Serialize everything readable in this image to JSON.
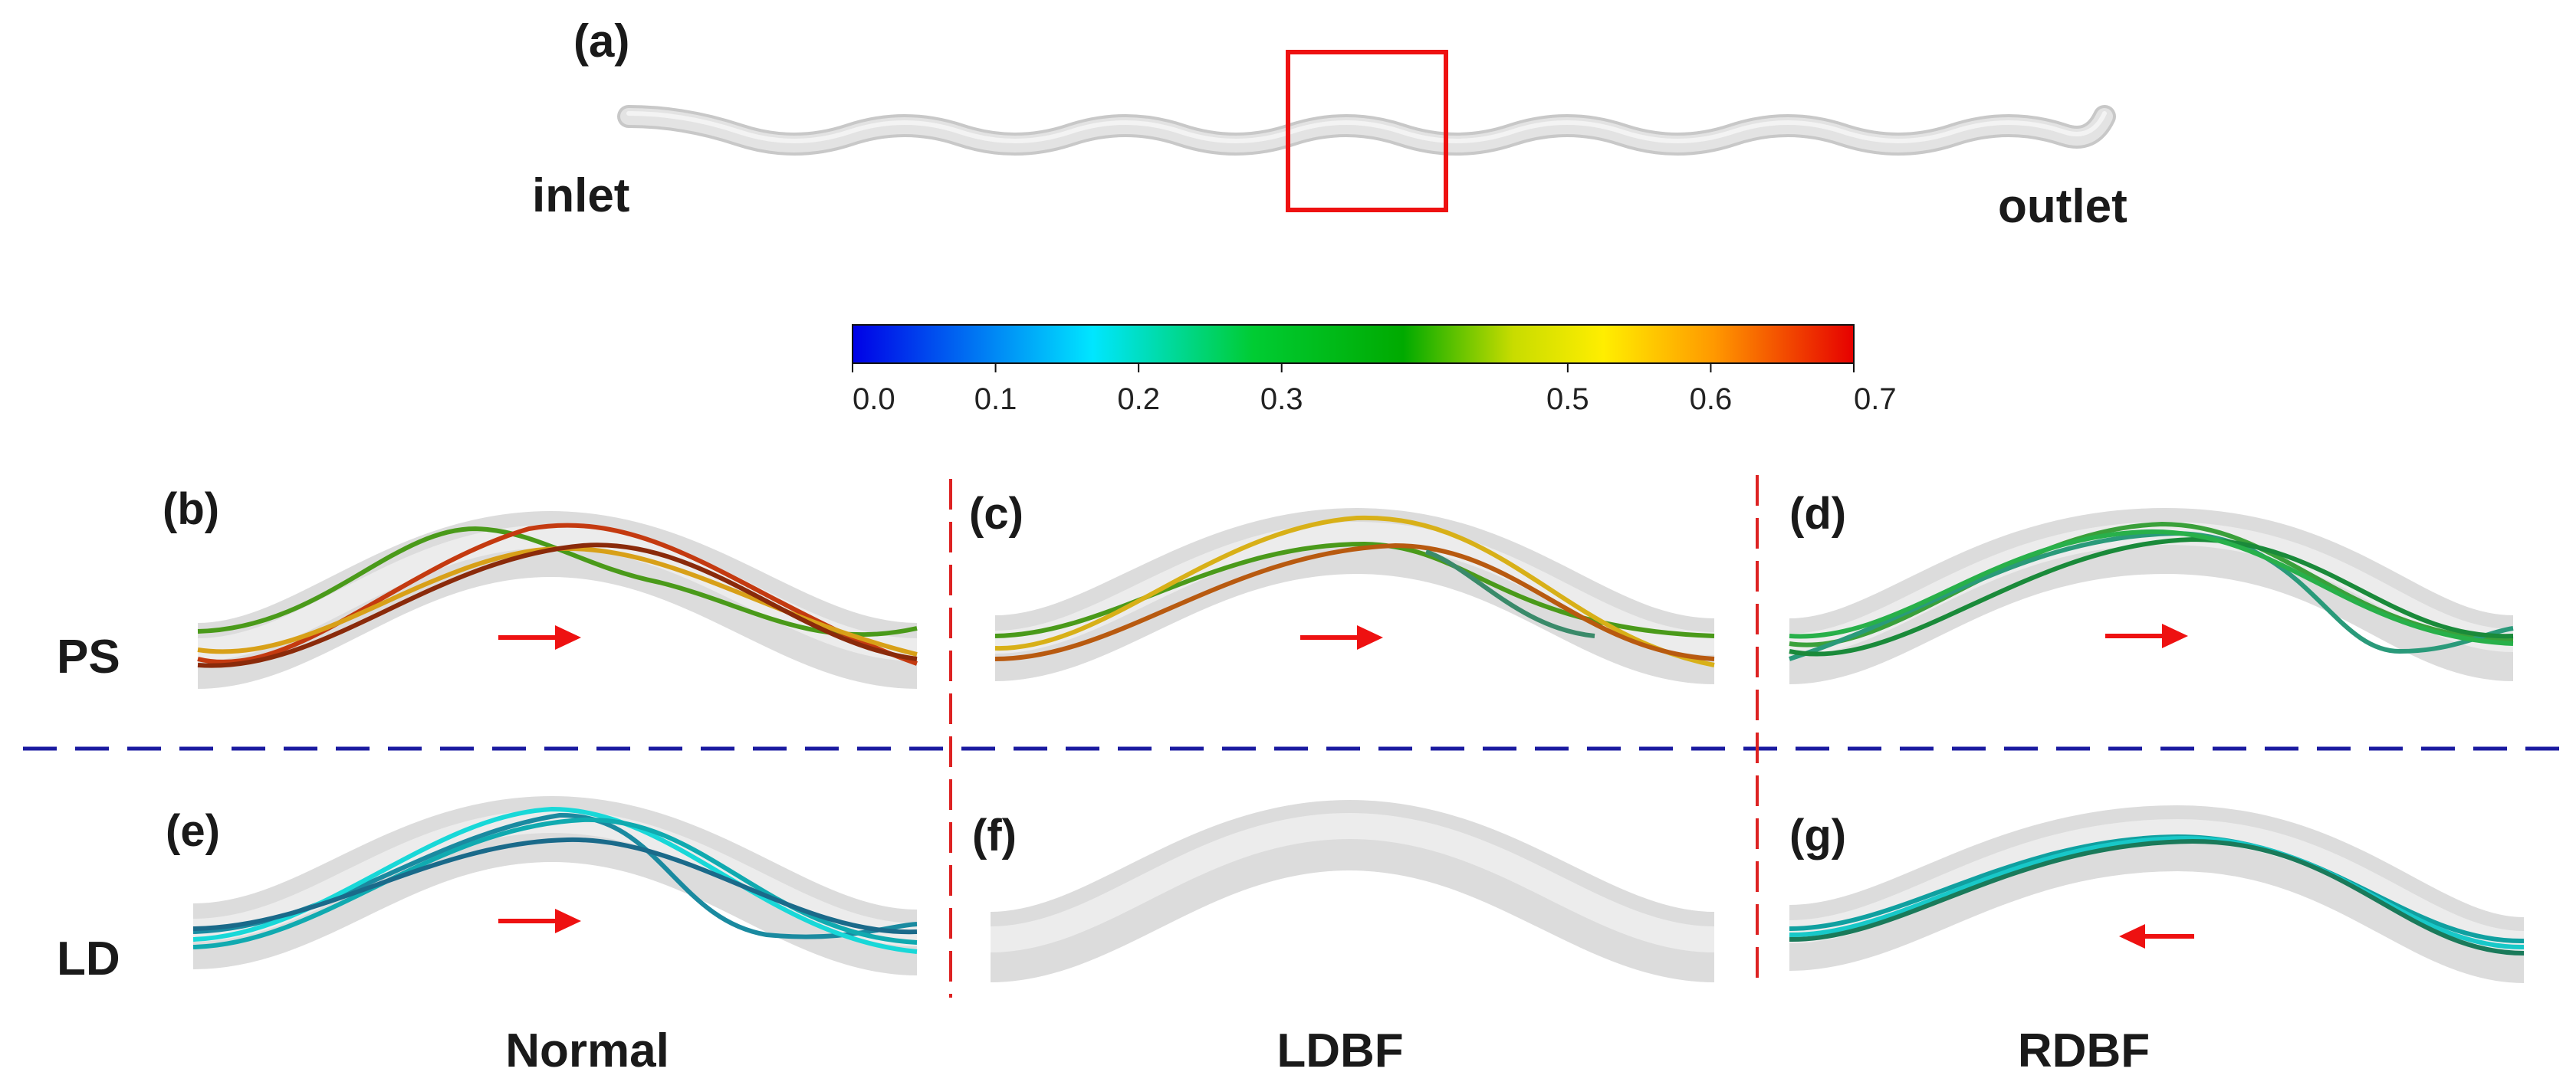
{
  "panels": {
    "a": "(a)",
    "b": "(b)",
    "c": "(c)",
    "d": "(d)",
    "e": "(e)",
    "f": "(f)",
    "g": "(g)"
  },
  "inlet_label": "inlet",
  "outlet_label": "outlet",
  "colorbar": {
    "min": 0.0,
    "max": 0.7,
    "ticks": [
      "0.0",
      "0.1",
      "0.2",
      "0.3",
      "0.5",
      "0.6",
      "0.7"
    ],
    "stops": [
      "#0000e6",
      "#00e6ff",
      "#00cc33",
      "#00aa00",
      "#c8dc00",
      "#ffee00",
      "#ff9900",
      "#e60000"
    ]
  },
  "row_labels": {
    "top": "PS",
    "bottom": "LD"
  },
  "column_labels": {
    "left": "Normal",
    "middle": "LDBF",
    "right": "RDBF"
  },
  "flow_direction": {
    "b": "right",
    "c": "right",
    "d": "right",
    "e": "right",
    "f": "none",
    "g": "left"
  },
  "colors": {
    "highlight_box": "#ee1111",
    "arrow": "#ee1111",
    "vertical_divider": "#dd2222",
    "horizontal_divider": "#1a1aa0",
    "tube": "#d9d9d9"
  }
}
